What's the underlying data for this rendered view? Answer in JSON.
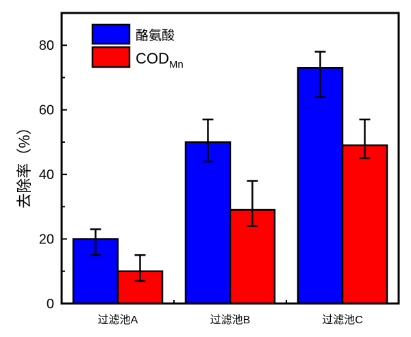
{
  "chart_data": {
    "type": "bar",
    "title": "",
    "xlabel": "",
    "ylabel": "去除率（%）",
    "ylim": [
      0,
      90
    ],
    "yticks": [
      0,
      20,
      40,
      60,
      80
    ],
    "categories": [
      "过滤池A",
      "过滤池B",
      "过滤池C"
    ],
    "grid": false,
    "legend_position": "top-left",
    "series": [
      {
        "name": "酪氨酸",
        "name_sub": "",
        "color": "#0000FF",
        "values": [
          20,
          50,
          73
        ],
        "err_low": [
          15,
          44,
          64
        ],
        "err_high": [
          23,
          57,
          78
        ]
      },
      {
        "name": "COD",
        "name_sub": "Mn",
        "color": "#FF0000",
        "values": [
          10,
          29,
          49
        ],
        "err_low": [
          7,
          24,
          45
        ],
        "err_high": [
          15,
          38,
          57
        ]
      }
    ]
  }
}
